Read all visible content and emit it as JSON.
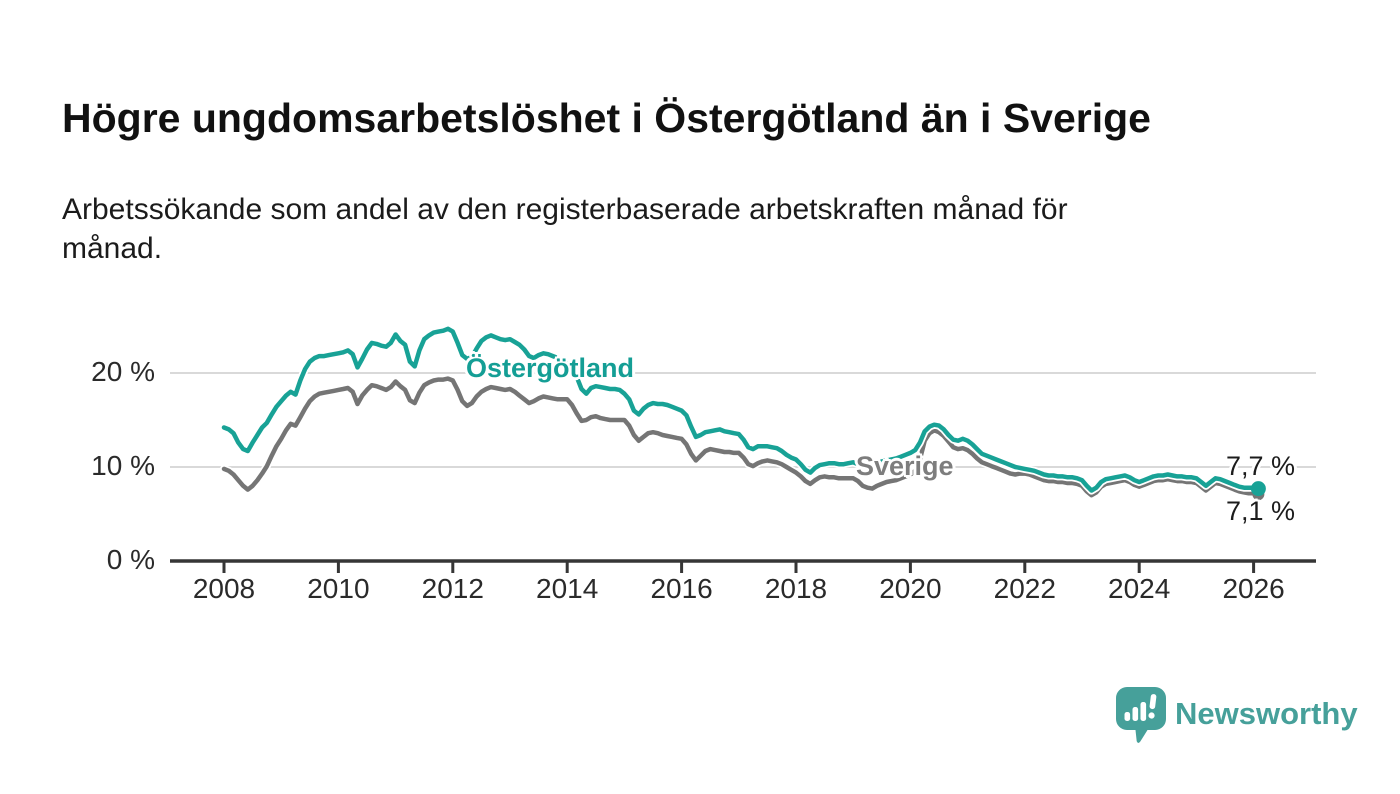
{
  "header": {
    "title": "Högre ungdomsarbetslöshet i Östergötland än i Sverige",
    "subtitle": "Arbetssökande som andel av den registerbaserade arbetskraften månad för\nmånad."
  },
  "footer": {
    "brand": "Newsworthy"
  },
  "colors": {
    "ostergotland": "#18a296",
    "sverige": "#757575",
    "gridline": "#d9d9d9",
    "axis": "#363636",
    "logo_teal": "#46a09a",
    "background": "#ffffff"
  },
  "chart_data": {
    "type": "line",
    "title": "Högre ungdomsarbetslöshet i Östergötland än i Sverige",
    "subtitle": "Arbetssökande som andel av den registerbaserade arbetskraften månad för månad.",
    "xlabel": "",
    "ylabel": "",
    "ylim": [
      0,
      28
    ],
    "xlim": [
      2007.05,
      2027.1
    ],
    "grid": "horizontal",
    "legend_position": "inline-labels",
    "unit": "%",
    "frequency": "monthly",
    "y_ticks": [
      {
        "value": 20,
        "label": "20 %"
      },
      {
        "value": 10,
        "label": "10 %"
      },
      {
        "value": 0,
        "label": "0 %"
      }
    ],
    "x_ticks": [
      {
        "year": 2008,
        "label": "2008"
      },
      {
        "year": 2010,
        "label": "2010"
      },
      {
        "year": 2012,
        "label": "2012"
      },
      {
        "year": 2014,
        "label": "2014"
      },
      {
        "year": 2016,
        "label": "2016"
      },
      {
        "year": 2018,
        "label": "2018"
      },
      {
        "year": 2020,
        "label": "2020"
      },
      {
        "year": 2022,
        "label": "2022"
      },
      {
        "year": 2024,
        "label": "2024"
      },
      {
        "year": 2026,
        "label": "2026"
      }
    ],
    "series": [
      {
        "name": "Östergötland",
        "color": "#18a296",
        "end_label": "7,7 %",
        "end_value": 7.7,
        "start_year": 2008,
        "step_months": 1,
        "values": [
          14.2,
          14.0,
          13.6,
          12.6,
          11.9,
          11.7,
          12.6,
          13.4,
          14.2,
          14.7,
          15.6,
          16.4,
          17.0,
          17.6,
          18.0,
          17.7,
          19.2,
          20.4,
          21.2,
          21.6,
          21.8,
          21.8,
          21.9,
          22.0,
          22.1,
          22.2,
          22.4,
          22.0,
          20.6,
          21.5,
          22.5,
          23.2,
          23.1,
          22.9,
          22.8,
          23.2,
          24.1,
          23.4,
          23.0,
          21.2,
          20.7,
          22.4,
          23.6,
          24.0,
          24.3,
          24.4,
          24.5,
          24.7,
          24.4,
          23.2,
          21.9,
          21.5,
          21.7,
          22.6,
          23.4,
          23.8,
          24.0,
          23.8,
          23.6,
          23.5,
          23.6,
          23.3,
          23.0,
          22.5,
          21.8,
          21.6,
          21.9,
          22.1,
          22.0,
          21.8,
          21.6,
          21.3,
          21.0,
          20.5,
          19.6,
          18.3,
          17.8,
          18.4,
          18.6,
          18.5,
          18.4,
          18.3,
          18.3,
          18.2,
          17.8,
          17.2,
          16.0,
          15.6,
          16.2,
          16.6,
          16.8,
          16.7,
          16.7,
          16.6,
          16.4,
          16.2,
          16.0,
          15.5,
          14.3,
          13.2,
          13.4,
          13.7,
          13.8,
          13.9,
          14.0,
          13.8,
          13.7,
          13.6,
          13.5,
          12.9,
          12.1,
          11.9,
          12.2,
          12.2,
          12.2,
          12.1,
          12.0,
          11.7,
          11.3,
          11.0,
          10.8,
          10.3,
          9.7,
          9.4,
          9.9,
          10.2,
          10.3,
          10.4,
          10.4,
          10.3,
          10.3,
          10.4,
          10.5,
          10.3,
          10.0,
          9.9,
          10.2,
          10.5,
          10.6,
          10.7,
          10.8,
          10.9,
          11.1,
          11.3,
          11.5,
          11.8,
          12.6,
          13.8,
          14.3,
          14.5,
          14.4,
          14.0,
          13.4,
          12.9,
          12.8,
          13.0,
          12.8,
          12.4,
          11.9,
          11.4,
          11.2,
          11.0,
          10.8,
          10.6,
          10.4,
          10.2,
          10.0,
          9.9,
          9.8,
          9.7,
          9.6,
          9.4,
          9.2,
          9.1,
          9.1,
          9.0,
          9.0,
          8.9,
          8.9,
          8.8,
          8.6,
          8.0,
          7.5,
          7.8,
          8.4,
          8.7,
          8.8,
          8.9,
          9.0,
          9.1,
          8.9,
          8.6,
          8.4,
          8.6,
          8.8,
          9.0,
          9.1,
          9.1,
          9.2,
          9.1,
          9.0,
          9.0,
          8.9,
          8.9,
          8.8,
          8.4,
          8.0,
          8.4,
          8.8,
          8.7,
          8.5,
          8.3,
          8.1,
          7.9,
          7.8,
          7.8,
          7.8,
          7.7
        ]
      },
      {
        "name": "Sverige",
        "color": "#757575",
        "end_label": "7,1 %",
        "end_value": 7.1,
        "start_year": 2008,
        "step_months": 1,
        "values": [
          9.8,
          9.6,
          9.2,
          8.6,
          8.0,
          7.6,
          8.0,
          8.6,
          9.3,
          10.1,
          11.2,
          12.2,
          13.0,
          13.9,
          14.6,
          14.4,
          15.3,
          16.2,
          17.0,
          17.5,
          17.8,
          17.9,
          18.0,
          18.1,
          18.2,
          18.3,
          18.4,
          18.0,
          16.7,
          17.6,
          18.2,
          18.7,
          18.6,
          18.4,
          18.2,
          18.5,
          19.1,
          18.6,
          18.2,
          17.1,
          16.8,
          17.9,
          18.7,
          19.0,
          19.2,
          19.3,
          19.3,
          19.4,
          19.2,
          18.2,
          17.0,
          16.5,
          16.8,
          17.5,
          18.0,
          18.3,
          18.5,
          18.4,
          18.3,
          18.2,
          18.3,
          18.0,
          17.6,
          17.2,
          16.8,
          17.0,
          17.3,
          17.5,
          17.4,
          17.3,
          17.2,
          17.2,
          17.2,
          16.6,
          15.7,
          14.9,
          15.0,
          15.3,
          15.4,
          15.2,
          15.1,
          15.0,
          15.0,
          15.0,
          15.0,
          14.4,
          13.4,
          12.8,
          13.2,
          13.6,
          13.7,
          13.6,
          13.4,
          13.3,
          13.2,
          13.1,
          13.0,
          12.4,
          11.4,
          10.7,
          11.2,
          11.7,
          11.9,
          11.8,
          11.7,
          11.6,
          11.6,
          11.5,
          11.5,
          11.0,
          10.3,
          10.1,
          10.4,
          10.6,
          10.7,
          10.6,
          10.5,
          10.3,
          10.0,
          9.7,
          9.4,
          9.0,
          8.5,
          8.2,
          8.6,
          8.9,
          9.0,
          8.9,
          8.9,
          8.8,
          8.8,
          8.8,
          8.8,
          8.5,
          8.0,
          7.8,
          7.7,
          8.0,
          8.2,
          8.4,
          8.5,
          8.6,
          8.8,
          9.0,
          9.2,
          9.6,
          10.8,
          12.8,
          13.6,
          13.9,
          13.7,
          13.3,
          12.7,
          12.1,
          11.9,
          12.0,
          11.8,
          11.4,
          10.9,
          10.5,
          10.3,
          10.1,
          9.9,
          9.7,
          9.5,
          9.3,
          9.2,
          9.3,
          9.3,
          9.2,
          9.0,
          8.8,
          8.6,
          8.5,
          8.5,
          8.4,
          8.4,
          8.3,
          8.3,
          8.2,
          8.0,
          7.4,
          7.0,
          7.3,
          7.9,
          8.2,
          8.3,
          8.4,
          8.5,
          8.6,
          8.4,
          8.1,
          7.9,
          8.1,
          8.3,
          8.5,
          8.6,
          8.6,
          8.7,
          8.6,
          8.5,
          8.5,
          8.4,
          8.4,
          8.3,
          7.9,
          7.5,
          7.9,
          8.3,
          8.2,
          8.0,
          7.8,
          7.6,
          7.4,
          7.3,
          7.2,
          7.2,
          7.1
        ]
      }
    ]
  }
}
